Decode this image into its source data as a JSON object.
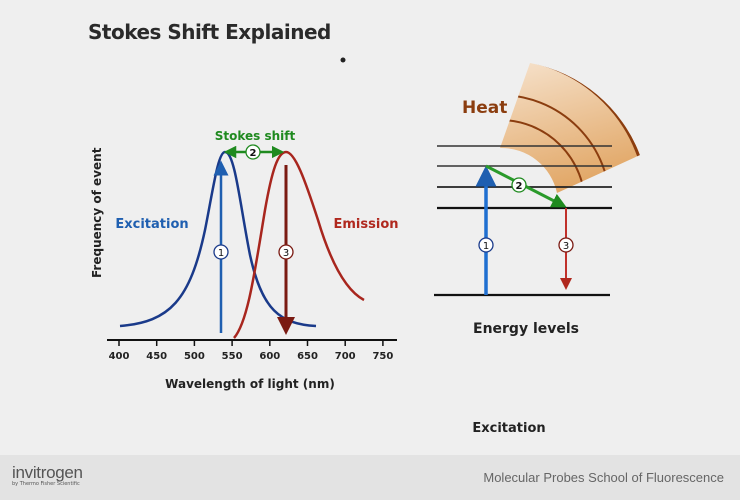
{
  "title": "Stokes Shift Explained",
  "spectrum": {
    "y_label": "Frequency of event",
    "x_label": "Wavelength of light (nm)",
    "x_ticks": [
      "400",
      "450",
      "500",
      "550",
      "600",
      "650",
      "700",
      "750"
    ],
    "excitation_label": "Excitation",
    "emission_label": "Emission",
    "stokes_label": "Stokes shift",
    "excitation_peak_nm": 540,
    "emission_peak_nm": 620,
    "markers": [
      "1",
      "2",
      "3"
    ]
  },
  "energy": {
    "heat_label": "Heat",
    "levels_label": "Energy levels",
    "markers": [
      "1",
      "2",
      "3"
    ]
  },
  "caption": "Excitation",
  "footer": {
    "brand": "invitrogen",
    "brand_sub": "by Thermo Fisher Scientific",
    "school": "Molecular Probes School of Fluorescence"
  },
  "colors": {
    "blue": "#1f5fb0",
    "red": "#b0281e",
    "green": "#1f8a1f",
    "heat": "#8b3d0f"
  }
}
